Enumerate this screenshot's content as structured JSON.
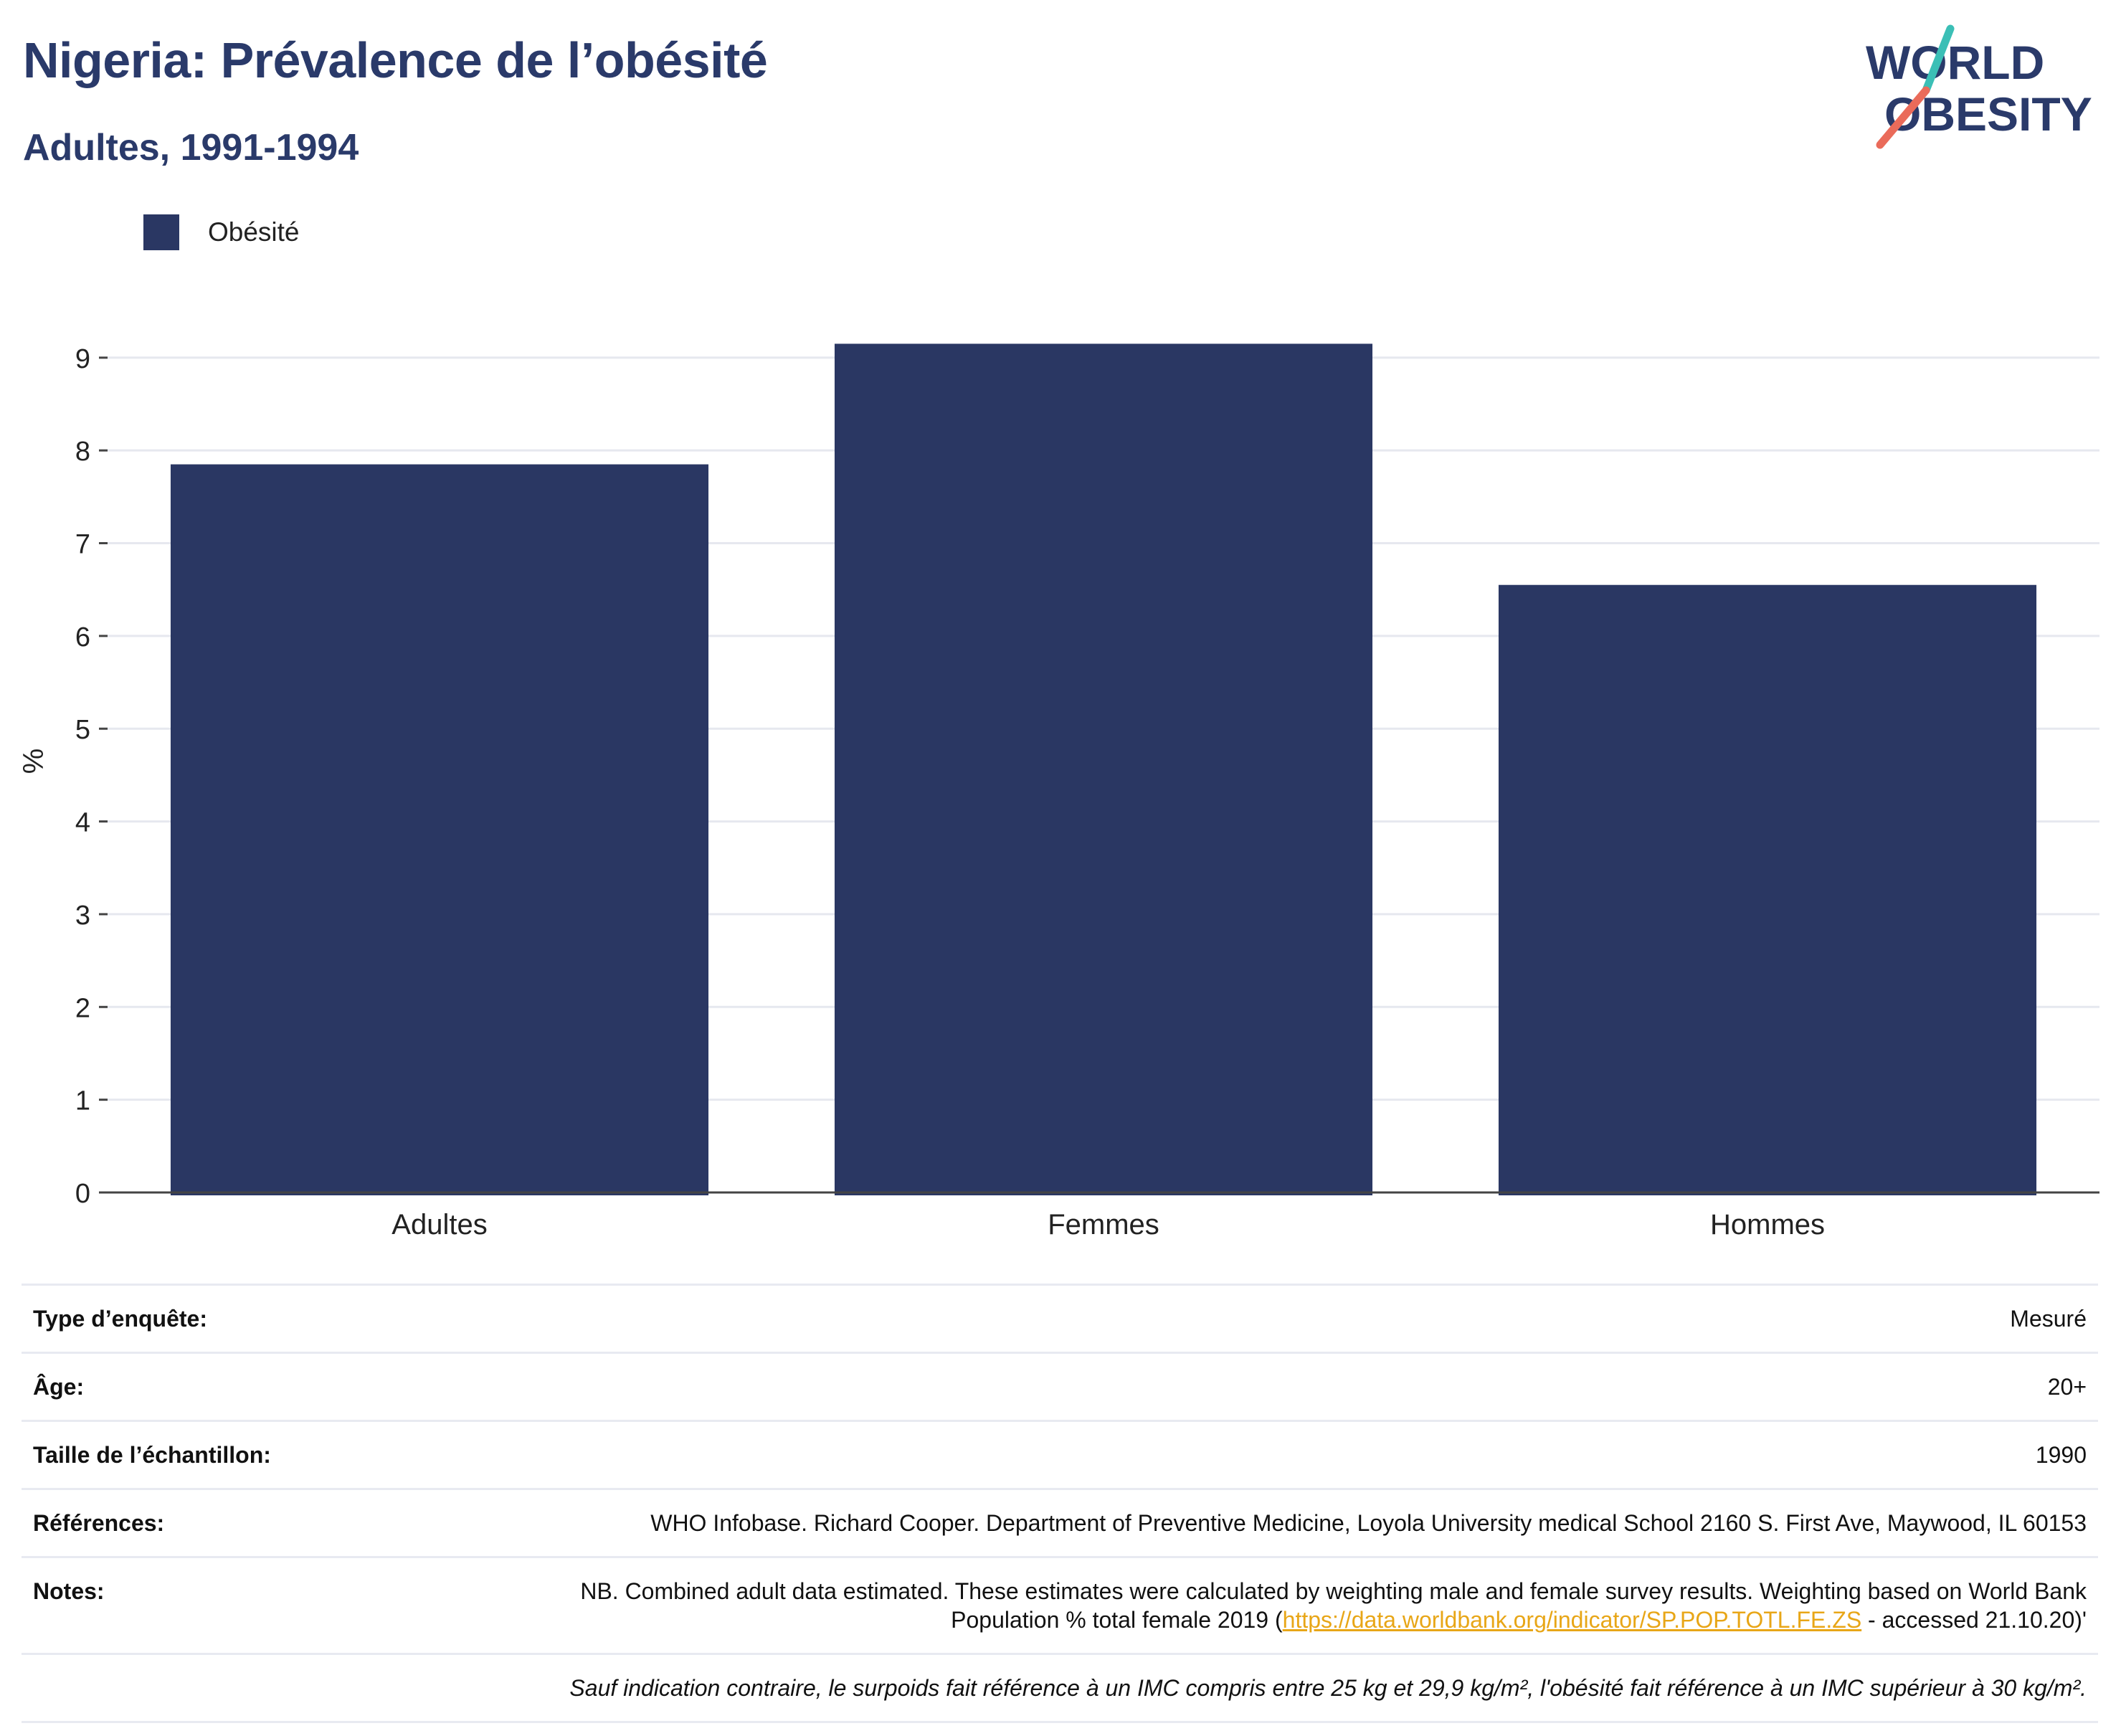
{
  "header": {
    "title": "Nigeria: Prévalence de l’obésité",
    "subtitle": "Adultes, 1991-1994"
  },
  "logo": {
    "line1": "WORLD",
    "line2": "OBESITY",
    "accent_teal": "#3bbfb6",
    "accent_coral": "#ea6b5a",
    "text_color": "#2a3a6a"
  },
  "legend": {
    "label": "Obésité",
    "color": "#2a3763"
  },
  "chart_data": {
    "type": "bar",
    "categories": [
      "Adultes",
      "Femmes",
      "Hommes"
    ],
    "series": [
      {
        "name": "Obésité",
        "values": [
          7.85,
          9.15,
          6.55
        ],
        "color": "#2a3763"
      }
    ],
    "ylabel": "%",
    "xlabel": "",
    "ylim": [
      0,
      9.3
    ],
    "yticks": [
      0,
      1,
      2,
      3,
      4,
      5,
      6,
      7,
      8,
      9
    ],
    "grid": true,
    "legend_position": "top-left"
  },
  "meta": {
    "survey_type": {
      "label": "Type d’enquête:",
      "value": "Mesuré"
    },
    "age": {
      "label": "Âge:",
      "value": "20+"
    },
    "sample_size": {
      "label": "Taille de l’échantillon:",
      "value": "1990"
    },
    "references": {
      "label": "Références:",
      "value": "WHO Infobase. Richard Cooper. Department of Preventive Medicine, Loyola University medical School 2160 S. First Ave, Maywood, IL 60153"
    },
    "notes": {
      "label": "Notes:",
      "value_before": "NB. Combined adult data estimated. These estimates were calculated by weighting male and female survey results. Weighting based on World Bank Population % total female 2019 (",
      "link": "https://data.worldbank.org/indicator/SP.POP.TOTL.FE.ZS",
      "value_after": " - accessed 21.10.20)'"
    },
    "footnote": "Sauf indication contraire, le surpoids fait référence à un IMC compris entre 25 kg et 29,9 kg/m², l'obésité fait référence à un IMC supérieur à 30 kg/m²."
  }
}
